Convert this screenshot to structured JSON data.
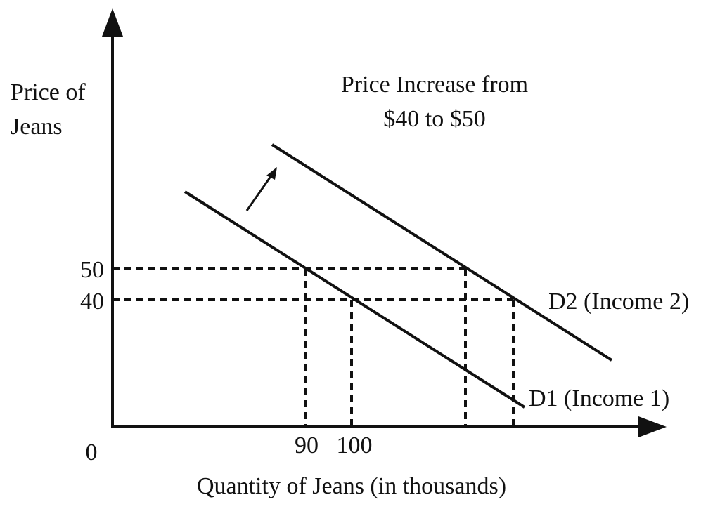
{
  "y_axis_label": [
    "Price of",
    "Jeans"
  ],
  "title": [
    "Price Increase from",
    "$40 to $50"
  ],
  "y_ticks": [
    "50",
    "40"
  ],
  "origin": "0",
  "x_ticks": [
    "90",
    "100"
  ],
  "x_axis_label": "Quantity of Jeans (in thousands)",
  "curves": [
    {
      "label": "D2 (Income 2)"
    },
    {
      "label": "D1 (Income 1)"
    }
  ]
}
